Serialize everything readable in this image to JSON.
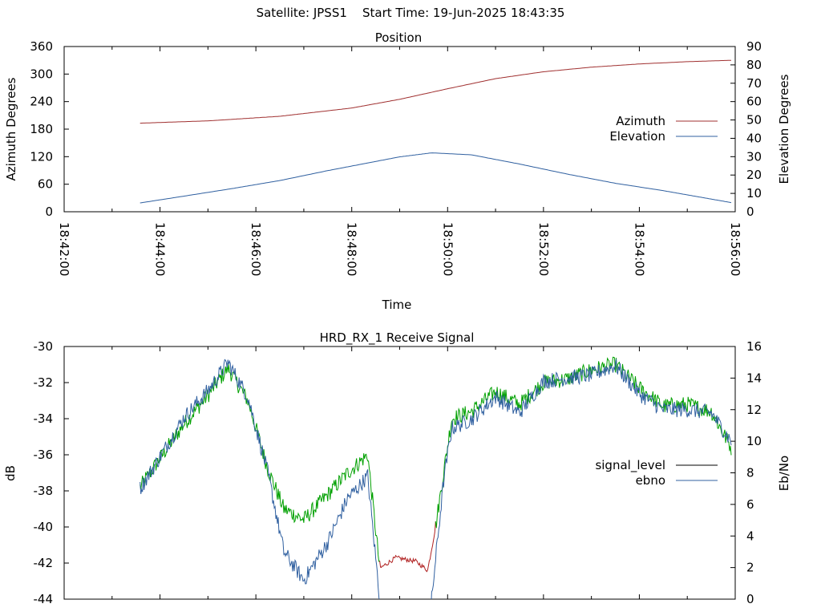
{
  "header": {
    "satellite_label": "Satellite: JPSS1",
    "start_time_label": "Start Time: 19-Jun-2025 18:43:35"
  },
  "colors": {
    "azimuth": "#a03030",
    "elevation": "#3060a0",
    "signal_level": "#000000",
    "ebno": "#3060a0",
    "signal_trace_green": "#00a000",
    "signal_trace_red": "#b02020"
  },
  "chart_data": [
    {
      "type": "line",
      "title": "Position",
      "xlabel": "Time",
      "ylabel": "Azimuth Degrees",
      "y2label": "Elevation Degrees",
      "x_ticks": [
        "18:42:00",
        "18:44:00",
        "18:46:00",
        "18:48:00",
        "18:50:00",
        "18:52:00",
        "18:54:00",
        "18:56:00"
      ],
      "xlim": [
        "18:42:00",
        "18:56:00"
      ],
      "ylim": [
        0,
        360
      ],
      "y_ticks": [
        0,
        60,
        120,
        180,
        240,
        300,
        360
      ],
      "y2lim": [
        0,
        90
      ],
      "y2_ticks": [
        0,
        10,
        20,
        30,
        40,
        50,
        60,
        70,
        80,
        90
      ],
      "legend": "right",
      "series": [
        {
          "name": "Azimuth",
          "axis": "y",
          "x": [
            "18:43:35",
            "18:45:00",
            "18:46:30",
            "18:48:00",
            "18:49:00",
            "18:50:00",
            "18:51:00",
            "18:52:00",
            "18:53:00",
            "18:54:00",
            "18:55:00",
            "18:55:55"
          ],
          "y": [
            193,
            198,
            208,
            226,
            245,
            268,
            290,
            305,
            315,
            322,
            327,
            330
          ]
        },
        {
          "name": "Elevation",
          "axis": "y2",
          "x": [
            "18:43:35",
            "18:44:30",
            "18:45:30",
            "18:46:30",
            "18:47:30",
            "18:48:30",
            "18:49:00",
            "18:49:40",
            "18:50:30",
            "18:51:30",
            "18:52:30",
            "18:53:30",
            "18:54:30",
            "18:55:55"
          ],
          "y": [
            4.8,
            8.5,
            12.6,
            17.0,
            22.4,
            27.4,
            29.9,
            32.1,
            31.0,
            26.0,
            20.5,
            15.5,
            11.5,
            5.0
          ]
        }
      ]
    },
    {
      "type": "line",
      "title": "HRD_RX_1 Receive Signal",
      "ylabel": "dB",
      "y2label": "Eb/No",
      "xlim": [
        "18:42:00",
        "18:56:00"
      ],
      "ylim": [
        -44,
        -30
      ],
      "y_ticks": [
        -44,
        -42,
        -40,
        -38,
        -36,
        -34,
        -32,
        -30
      ],
      "y2lim": [
        0,
        16
      ],
      "y2_ticks": [
        0,
        2,
        4,
        6,
        8,
        10,
        12,
        14,
        16
      ],
      "legend": "right",
      "series": [
        {
          "name": "signal_level",
          "axis": "y",
          "x": [
            "18:43:35",
            "18:44:00",
            "18:44:30",
            "18:45:00",
            "18:45:25",
            "18:45:50",
            "18:46:15",
            "18:46:35",
            "18:47:00",
            "18:47:30",
            "18:47:55",
            "18:48:10",
            "18:48:20",
            "18:48:35",
            "18:48:55",
            "18:49:20",
            "18:49:35",
            "18:49:45",
            "18:50:05",
            "18:50:30",
            "18:51:00",
            "18:51:30",
            "18:52:00",
            "18:52:30",
            "18:53:00",
            "18:53:30",
            "18:54:00",
            "18:54:30",
            "18:55:00",
            "18:55:30",
            "18:55:55"
          ],
          "y": [
            -37.8,
            -36.2,
            -34.3,
            -32.7,
            -31.2,
            -33.0,
            -36.8,
            -39.0,
            -39.6,
            -38.2,
            -37.0,
            -36.4,
            -36.0,
            -42.3,
            -41.7,
            -41.9,
            -42.4,
            -40.0,
            -34.0,
            -33.6,
            -32.5,
            -33.2,
            -32.0,
            -31.8,
            -31.3,
            -31.0,
            -32.3,
            -33.3,
            -33.2,
            -33.6,
            -35.6
          ]
        },
        {
          "name": "ebno",
          "axis": "y2",
          "x": [
            "18:43:35",
            "18:44:00",
            "18:44:30",
            "18:45:00",
            "18:45:25",
            "18:45:50",
            "18:46:15",
            "18:46:35",
            "18:47:00",
            "18:47:30",
            "18:47:55",
            "18:48:10",
            "18:48:20",
            "18:48:35",
            "18:49:40",
            "18:49:55",
            "18:50:05",
            "18:50:30",
            "18:51:00",
            "18:51:30",
            "18:52:00",
            "18:52:30",
            "18:53:00",
            "18:53:30",
            "18:54:00",
            "18:54:30",
            "18:55:00",
            "18:55:30",
            "18:55:55"
          ],
          "y": [
            7.0,
            9.0,
            11.5,
            13.2,
            15.0,
            12.8,
            8.0,
            3.0,
            1.2,
            3.6,
            6.4,
            7.2,
            7.8,
            0,
            0,
            7.5,
            10.8,
            11.4,
            12.8,
            11.8,
            13.8,
            14.0,
            14.2,
            14.8,
            13.0,
            12.0,
            12.0,
            11.8,
            10.0
          ]
        }
      ]
    }
  ]
}
